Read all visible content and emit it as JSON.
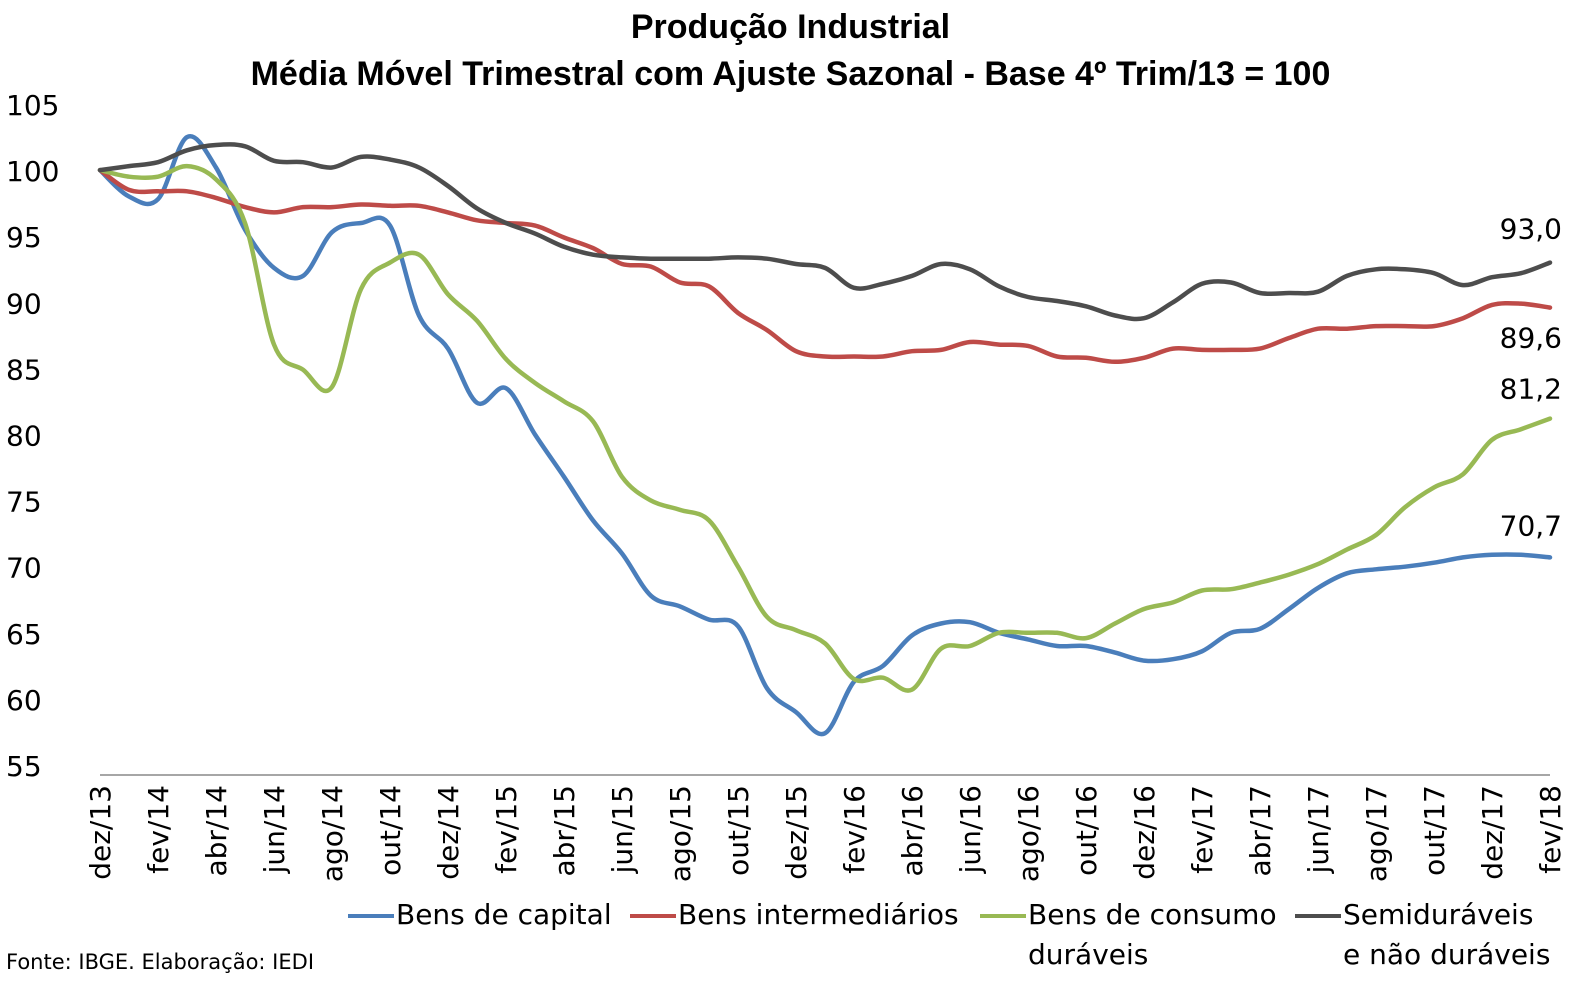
{
  "chart_data": {
    "type": "line",
    "title": "Produção Industrial",
    "subtitle": "Média Móvel Trimestral com Ajuste Sazonal - Base 4º Trim/13 = 100",
    "x": [
      "dez/13",
      "jan/14",
      "fev/14",
      "mar/14",
      "abr/14",
      "mai/14",
      "jun/14",
      "jul/14",
      "ago/14",
      "set/14",
      "out/14",
      "nov/14",
      "dez/14",
      "jan/15",
      "fev/15",
      "mar/15",
      "abr/15",
      "mai/15",
      "jun/15",
      "jul/15",
      "ago/15",
      "set/15",
      "out/15",
      "nov/15",
      "dez/15",
      "jan/16",
      "fev/16",
      "mar/16",
      "abr/16",
      "mai/16",
      "jun/16",
      "jul/16",
      "ago/16",
      "set/16",
      "out/16",
      "nov/16",
      "dez/16",
      "jan/17",
      "fev/17",
      "mar/17",
      "abr/17",
      "mai/17",
      "jun/17",
      "jul/17",
      "ago/17",
      "set/17",
      "out/17",
      "nov/17",
      "dez/17",
      "jan/18",
      "fev/18"
    ],
    "x_tick_labels": [
      "dez/13",
      "fev/14",
      "abr/14",
      "jun/14",
      "ago/14",
      "out/14",
      "dez/14",
      "fev/15",
      "abr/15",
      "jun/15",
      "ago/15",
      "out/15",
      "dez/15",
      "fev/16",
      "abr/16",
      "jun/16",
      "ago/16",
      "out/16",
      "dez/16",
      "fev/17",
      "abr/17",
      "jun/17",
      "ago/17",
      "out/17",
      "dez/17",
      "fev/18"
    ],
    "y_ticks": [
      55,
      60,
      65,
      70,
      75,
      80,
      85,
      90,
      95,
      100,
      105
    ],
    "ylim": [
      55,
      105
    ],
    "grid": false,
    "legend_position": "bottom",
    "series": [
      {
        "name": "Bens de capital",
        "color": "#4a7ebb",
        "values": [
          100,
          98,
          97.8,
          102.5,
          100.2,
          95.5,
          92.6,
          92,
          95.3,
          96,
          95.8,
          89,
          86.5,
          82.4,
          83.5,
          80,
          76.8,
          73.5,
          71,
          67.8,
          67,
          66,
          65.5,
          60.8,
          59,
          57.4,
          61.3,
          62.5,
          64.8,
          65.7,
          65.8,
          65,
          64.5,
          64,
          64,
          63.5,
          62.9,
          63,
          63.6,
          65,
          65.3,
          66.8,
          68.4,
          69.5,
          69.8,
          70,
          70.3,
          70.7,
          70.9,
          70.9,
          70.7
        ],
        "end_label": "70,7"
      },
      {
        "name": "Bens intermediários",
        "color": "#be4b48",
        "values": [
          100,
          98.5,
          98.4,
          98.4,
          97.9,
          97.2,
          96.8,
          97.2,
          97.2,
          97.4,
          97.3,
          97.3,
          96.8,
          96.2,
          96,
          95.8,
          94.9,
          94.1,
          92.9,
          92.7,
          91.5,
          91.2,
          89.2,
          87.9,
          86.3,
          85.9,
          85.9,
          85.9,
          86.3,
          86.4,
          87,
          86.8,
          86.7,
          85.9,
          85.8,
          85.5,
          85.8,
          86.5,
          86.4,
          86.4,
          86.5,
          87.3,
          88,
          88,
          88.2,
          88.2,
          88.2,
          88.8,
          89.8,
          89.9,
          89.6
        ],
        "end_label": "89,6"
      },
      {
        "name": "Bens de consumo duráveis",
        "color": "#98b954",
        "values": [
          100,
          99.5,
          99.5,
          100.3,
          99.3,
          96,
          86.8,
          84.9,
          83.6,
          91,
          93,
          93.6,
          90.6,
          88.6,
          85.7,
          83.9,
          82.5,
          81,
          76.8,
          75,
          74.3,
          73.5,
          70,
          66.2,
          65.2,
          64.2,
          61.5,
          61.6,
          60.7,
          63.8,
          64,
          65,
          65,
          65,
          64.6,
          65.7,
          66.8,
          67.3,
          68.2,
          68.3,
          68.8,
          69.4,
          70.2,
          71.3,
          72.4,
          74.5,
          76,
          77,
          79.6,
          80.4,
          81.2
        ],
        "end_label": "81,2"
      },
      {
        "name": "Semiduráveis e não duráveis",
        "color": "#4d4d4d",
        "values": [
          100,
          100.3,
          100.6,
          101.5,
          101.9,
          101.8,
          100.7,
          100.6,
          100.2,
          101,
          100.8,
          100.2,
          98.8,
          97.1,
          96,
          95.2,
          94.2,
          93.6,
          93.4,
          93.3,
          93.3,
          93.3,
          93.4,
          93.3,
          92.9,
          92.6,
          91.1,
          91.4,
          92,
          92.9,
          92.5,
          91.2,
          90.4,
          90.1,
          89.7,
          89,
          88.8,
          90,
          91.4,
          91.5,
          90.7,
          90.7,
          90.8,
          92,
          92.5,
          92.5,
          92.2,
          91.3,
          91.9,
          92.2,
          93
        ],
        "end_label": "93,0"
      }
    ]
  },
  "source_note": "Fonte: IBGE. Elaboração: IEDI"
}
